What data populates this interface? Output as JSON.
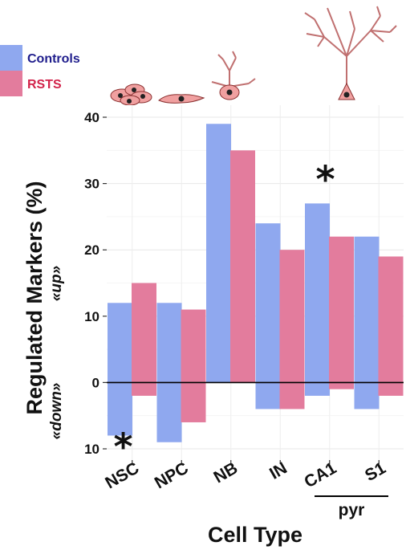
{
  "chart_data": {
    "type": "bar",
    "xlabel": "Cell Type",
    "ylabel": "Regulated Markers (%)",
    "up_label": "«up»",
    "down_label": "«down»",
    "categories": [
      "NSC",
      "NPC",
      "NB",
      "IN",
      "CA1",
      "S1"
    ],
    "group_label": "pyr",
    "group_members": [
      "CA1",
      "S1"
    ],
    "ylim": [
      -10,
      40
    ],
    "yticks": [
      {
        "value": 40,
        "label": "40"
      },
      {
        "value": 30,
        "label": "30"
      },
      {
        "value": 20,
        "label": "20"
      },
      {
        "value": 10,
        "label": "10"
      },
      {
        "value": 0,
        "label": "0"
      },
      {
        "value": -10,
        "label": "10"
      }
    ],
    "series": [
      {
        "name": "Controls",
        "color": "#8fa8ef",
        "up": [
          12,
          12,
          39,
          24,
          27,
          22
        ],
        "down": [
          8,
          9,
          0,
          4,
          2,
          4
        ]
      },
      {
        "name": "RSTS",
        "color": "#e37c9d",
        "up": [
          15,
          11,
          35,
          20,
          22,
          19
        ],
        "down": [
          2,
          6,
          0,
          4,
          1,
          2
        ]
      }
    ],
    "significance": [
      {
        "category": "NSC",
        "direction": "down",
        "label": "*"
      },
      {
        "category": "CA1",
        "direction": "up",
        "label": "*"
      }
    ],
    "legend_position": "top-left",
    "grid": true,
    "colors": {
      "up_label": "#1c2fd4",
      "down_label": "#e0241b",
      "controls_text": "#1f1d8c",
      "rsts_text": "#d2234a"
    },
    "icons": [
      "nsc-cluster-icon",
      "npc-cell-icon",
      "nb-cell-icon",
      "pyramidal-neuron-icon"
    ]
  }
}
